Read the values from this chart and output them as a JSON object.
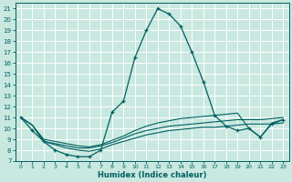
{
  "title": "",
  "xlabel": "Humidex (Indice chaleur)",
  "xlim": [
    -0.5,
    23.5
  ],
  "ylim": [
    7,
    21.5
  ],
  "yticks": [
    7,
    8,
    9,
    10,
    11,
    12,
    13,
    14,
    15,
    16,
    17,
    18,
    19,
    20,
    21
  ],
  "xticks": [
    0,
    1,
    2,
    3,
    4,
    5,
    6,
    7,
    8,
    9,
    10,
    11,
    12,
    13,
    14,
    15,
    16,
    17,
    18,
    19,
    20,
    21,
    22,
    23
  ],
  "bg_color": "#c8e8e0",
  "grid_color": "#ffffff",
  "line_color": "#006060",
  "lines": [
    {
      "x": [
        0,
        1,
        2,
        3,
        4,
        5,
        6,
        7,
        8,
        9,
        10,
        11,
        12,
        13,
        14,
        15,
        16,
        17,
        18,
        19,
        20,
        21,
        22,
        23
      ],
      "y": [
        11.0,
        9.8,
        8.8,
        8.0,
        7.6,
        7.4,
        7.4,
        8.0,
        11.5,
        12.5,
        16.5,
        19.0,
        21.0,
        20.5,
        19.4,
        17.0,
        14.3,
        11.2,
        10.2,
        9.8,
        10.0,
        9.2,
        10.4,
        10.8
      ],
      "marker": true
    },
    {
      "x": [
        0,
        1,
        2,
        3,
        4,
        5,
        6,
        7,
        8,
        9,
        10,
        11,
        12,
        13,
        14,
        15,
        16,
        17,
        18,
        19,
        20,
        21,
        22,
        23
      ],
      "y": [
        11.0,
        10.3,
        8.8,
        8.6,
        8.4,
        8.2,
        8.2,
        8.4,
        8.7,
        9.1,
        9.5,
        9.8,
        10.0,
        10.2,
        10.3,
        10.4,
        10.5,
        10.6,
        10.7,
        10.8,
        10.8,
        10.8,
        10.9,
        11.0
      ],
      "marker": false
    },
    {
      "x": [
        0,
        1,
        2,
        3,
        4,
        5,
        6,
        7,
        8,
        9,
        10,
        11,
        12,
        13,
        14,
        15,
        16,
        17,
        18,
        19,
        20,
        21,
        22,
        23
      ],
      "y": [
        11.0,
        10.3,
        8.8,
        8.5,
        8.2,
        8.0,
        7.9,
        8.1,
        8.5,
        8.8,
        9.1,
        9.4,
        9.6,
        9.8,
        9.9,
        10.0,
        10.1,
        10.1,
        10.2,
        10.3,
        10.4,
        10.4,
        10.4,
        10.5
      ],
      "marker": false
    },
    {
      "x": [
        0,
        1,
        2,
        3,
        4,
        5,
        6,
        7,
        8,
        9,
        10,
        11,
        12,
        13,
        14,
        15,
        16,
        17,
        18,
        19,
        20,
        21,
        22,
        23
      ],
      "y": [
        11.0,
        10.3,
        9.0,
        8.8,
        8.6,
        8.4,
        8.3,
        8.5,
        8.9,
        9.3,
        9.8,
        10.2,
        10.5,
        10.7,
        10.9,
        11.0,
        11.1,
        11.2,
        11.3,
        11.4,
        10.0,
        9.2,
        10.5,
        10.8
      ],
      "marker": false
    }
  ]
}
